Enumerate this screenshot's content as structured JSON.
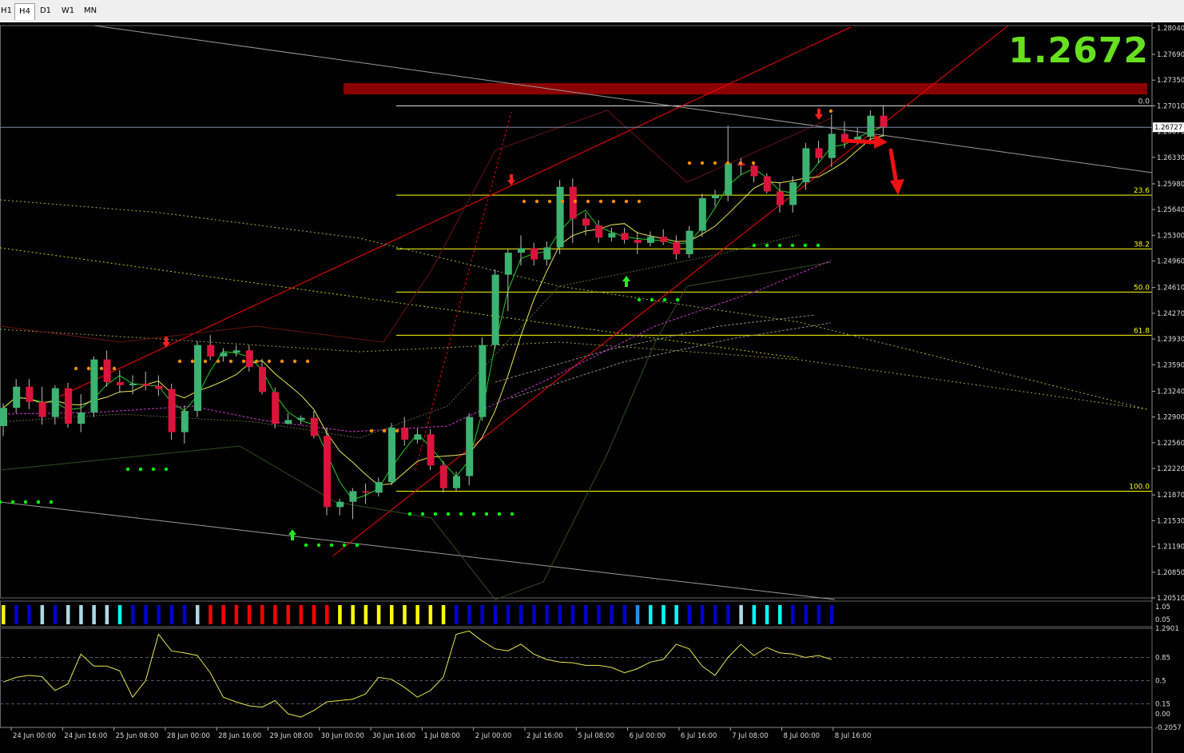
{
  "tabs": [
    {
      "label": "H1",
      "active": false
    },
    {
      "label": "H4",
      "active": true
    },
    {
      "label": "D1",
      "active": false
    },
    {
      "label": "W1",
      "active": false
    },
    {
      "label": "MN",
      "active": false
    }
  ],
  "current_price_big": "1.2672",
  "current_price_tag": "1.26727",
  "colors": {
    "bull": "#3cb371",
    "bear": "#dc143c",
    "fib": "#ffff00",
    "resistance": "#8b0000",
    "channel": "#ff0000",
    "buy_dot": "#00ff00",
    "sell_dot": "#ff8c00",
    "price_big": "#66e01f"
  },
  "chart_data": {
    "type": "candlestick",
    "symbol_timeframe": "H4",
    "price_axis_ticks": [
      "1.28040",
      "1.27690",
      "1.27350",
      "1.27010",
      "1.26670",
      "1.26330",
      "1.25980",
      "1.25640",
      "1.25300",
      "1.24960",
      "1.24610",
      "1.24270",
      "1.23930",
      "1.23590",
      "1.23240",
      "1.22900",
      "1.22560",
      "1.22220",
      "1.21870",
      "1.21530",
      "1.21190",
      "1.20850",
      "1.20510"
    ],
    "ylim": [
      1.2051,
      1.2807
    ],
    "time_axis_ticks": [
      "24 Jun 00:00",
      "24 Jun 16:00",
      "25 Jun 08:00",
      "28 Jun 00:00",
      "28 Jun 16:00",
      "29 Jun 08:00",
      "30 Jun 00:00",
      "30 Jun 16:00",
      "1 Jul 08:00",
      "2 Jul 00:00",
      "2 Jul 16:00",
      "5 Jul 08:00",
      "6 Jul 00:00",
      "6 Jul 16:00",
      "7 Jul 08:00",
      "8 Jul 00:00",
      "8 Jul 16:00"
    ],
    "fib_levels": [
      {
        "label": "0.0",
        "price": 1.2701
      },
      {
        "label": "23.6",
        "price": 1.2583
      },
      {
        "label": "38.2",
        "price": 1.2512
      },
      {
        "label": "50.0",
        "price": 1.2455
      },
      {
        "label": "61.8",
        "price": 1.2398
      },
      {
        "label": "100.0",
        "price": 1.2192
      }
    ],
    "resistance_zone": [
      1.2716,
      1.2731
    ],
    "candles": [
      [
        1.2278,
        1.2308,
        1.2265,
        1.2302
      ],
      [
        1.2302,
        1.234,
        1.2295,
        1.233
      ],
      [
        1.233,
        1.234,
        1.23,
        1.231
      ],
      [
        1.231,
        1.233,
        1.228,
        1.229
      ],
      [
        1.229,
        1.2332,
        1.228,
        1.2328
      ],
      [
        1.2328,
        1.2335,
        1.2276,
        1.2281
      ],
      [
        1.2281,
        1.232,
        1.227,
        1.2296
      ],
      [
        1.2296,
        1.237,
        1.229,
        1.2366
      ],
      [
        1.2366,
        1.2378,
        1.233,
        1.2336
      ],
      [
        1.2336,
        1.2352,
        1.2322,
        1.2332
      ],
      [
        1.2332,
        1.2345,
        1.232,
        1.2334
      ],
      [
        1.2334,
        1.235,
        1.2325,
        1.2331
      ],
      [
        1.2331,
        1.2345,
        1.2318,
        1.2327
      ],
      [
        1.2327,
        1.2334,
        1.226,
        1.227
      ],
      [
        1.227,
        1.2305,
        1.2255,
        1.2298
      ],
      [
        1.2298,
        1.239,
        1.229,
        1.2385
      ],
      [
        1.2385,
        1.2398,
        1.2365,
        1.237
      ],
      [
        1.237,
        1.2381,
        1.2363,
        1.2375
      ],
      [
        1.2375,
        1.2385,
        1.237,
        1.2378
      ],
      [
        1.2378,
        1.2385,
        1.235,
        1.2356
      ],
      [
        1.2356,
        1.2367,
        1.232,
        1.2323
      ],
      [
        1.2323,
        1.2329,
        1.2275,
        1.2281
      ],
      [
        1.2281,
        1.2295,
        1.228,
        1.2286
      ],
      [
        1.2286,
        1.2292,
        1.228,
        1.2289
      ],
      [
        1.2289,
        1.2298,
        1.2262,
        1.2265
      ],
      [
        1.2265,
        1.2276,
        1.216,
        1.2171
      ],
      [
        1.2171,
        1.2182,
        1.216,
        1.2178
      ],
      [
        1.2178,
        1.2196,
        1.2155,
        1.2192
      ],
      [
        1.2192,
        1.2202,
        1.2175,
        1.219
      ],
      [
        1.219,
        1.221,
        1.2185,
        1.2204
      ],
      [
        1.2204,
        1.2282,
        1.22,
        1.2276
      ],
      [
        1.2276,
        1.229,
        1.2252,
        1.226
      ],
      [
        1.226,
        1.2275,
        1.2255,
        1.2267
      ],
      [
        1.2267,
        1.2274,
        1.222,
        1.2226
      ],
      [
        1.2226,
        1.2232,
        1.219,
        1.2196
      ],
      [
        1.2196,
        1.2218,
        1.2192,
        1.2212
      ],
      [
        1.2212,
        1.2295,
        1.22,
        1.229
      ],
      [
        1.229,
        1.2395,
        1.2285,
        1.2385
      ],
      [
        1.2385,
        1.2485,
        1.238,
        1.2478
      ],
      [
        1.2478,
        1.2512,
        1.243,
        1.2507
      ],
      [
        1.2507,
        1.253,
        1.249,
        1.2513
      ],
      [
        1.2513,
        1.252,
        1.249,
        1.2498
      ],
      [
        1.2498,
        1.2522,
        1.249,
        1.2514
      ],
      [
        1.2514,
        1.2603,
        1.2505,
        1.2594
      ],
      [
        1.2594,
        1.2605,
        1.252,
        1.2552
      ],
      [
        1.2552,
        1.256,
        1.253,
        1.2543
      ],
      [
        1.2543,
        1.255,
        1.252,
        1.2527
      ],
      [
        1.2527,
        1.254,
        1.2522,
        1.2533
      ],
      [
        1.2533,
        1.254,
        1.2519,
        1.2524
      ],
      [
        1.2524,
        1.2535,
        1.2505,
        1.252
      ],
      [
        1.252,
        1.2535,
        1.2515,
        1.2528
      ],
      [
        1.2528,
        1.2538,
        1.2517,
        1.2521
      ],
      [
        1.2521,
        1.253,
        1.2498,
        1.2505
      ],
      [
        1.2505,
        1.2542,
        1.25,
        1.2536
      ],
      [
        1.2536,
        1.2585,
        1.2528,
        1.2579
      ],
      [
        1.2579,
        1.259,
        1.2568,
        1.2583
      ],
      [
        1.2583,
        1.2675,
        1.2575,
        1.2625
      ],
      [
        1.2625,
        1.2632,
        1.261,
        1.2622
      ],
      [
        1.2622,
        1.2625,
        1.26,
        1.2608
      ],
      [
        1.2608,
        1.2612,
        1.2585,
        1.2588
      ],
      [
        1.2588,
        1.26,
        1.256,
        1.257
      ],
      [
        1.257,
        1.2608,
        1.256,
        1.26
      ],
      [
        1.26,
        1.2652,
        1.259,
        1.2645
      ],
      [
        1.2645,
        1.2655,
        1.2625,
        1.2632
      ],
      [
        1.2632,
        1.269,
        1.262,
        1.2664
      ],
      [
        1.2664,
        1.268,
        1.2645,
        1.2653
      ],
      [
        1.2653,
        1.2672,
        1.265,
        1.266
      ],
      [
        1.266,
        1.2695,
        1.265,
        1.2688
      ],
      [
        1.2688,
        1.2702,
        1.266,
        1.2673
      ]
    ],
    "arrow_annotations": [
      {
        "type": "right",
        "from_price": 1.2663,
        "to_price": 1.2658
      },
      {
        "type": "down",
        "from_price": 1.2638,
        "to_price": 1.2575
      }
    ],
    "histogram_axis_ticks": [
      "1.05",
      "0.05"
    ],
    "histogram_colors": [
      "#ffff00",
      "#0000cd",
      "#0000cd",
      "#add8e6",
      "#0000cd",
      "#add8e6",
      "#add8e6",
      "#add8e6",
      "#add8e6",
      "#00ffff",
      "#0000cd",
      "#0000cd",
      "#0000cd",
      "#0000cd",
      "#0000cd",
      "#add8e6",
      "#ff0000",
      "#ff0000",
      "#ff0000",
      "#ff0000",
      "#ff0000",
      "#ff0000",
      "#ff0000",
      "#ff0000",
      "#ff0000",
      "#ff0000",
      "#ffff00",
      "#ffff00",
      "#ffff00",
      "#ffff00",
      "#ffff00",
      "#ffff00",
      "#ffff00",
      "#ffff00",
      "#ffff00",
      "#0000cd",
      "#0000cd",
      "#0000cd",
      "#0000cd",
      "#0000cd",
      "#0000cd",
      "#0000cd",
      "#0000cd",
      "#0000cd",
      "#0000cd",
      "#0000cd",
      "#0000cd",
      "#0000cd",
      "#0000cd",
      "#1e90ff",
      "#00ffff",
      "#00ffff",
      "#00ffff",
      "#0000cd",
      "#0000cd",
      "#0000cd",
      "#0000cd",
      "#add8e6",
      "#00ffff",
      "#00ffff",
      "#00ffff",
      "#0000cd",
      "#0000cd",
      "#0000cd",
      "#0000cd"
    ],
    "oscillator_axis_ticks": [
      "1.2901",
      "0.85",
      "0.5",
      "0.15",
      "0.00",
      "-0.2057"
    ],
    "oscillator_ylim": [
      -0.2057,
      1.2901
    ],
    "oscillator_values": [
      0.48,
      0.55,
      0.58,
      0.56,
      0.35,
      0.45,
      0.9,
      0.72,
      0.72,
      0.65,
      0.25,
      0.5,
      1.2,
      0.95,
      0.92,
      0.88,
      0.62,
      0.25,
      0.18,
      0.12,
      0.1,
      0.2,
      0.0,
      -0.05,
      0.05,
      0.18,
      0.2,
      0.22,
      0.3,
      0.55,
      0.52,
      0.4,
      0.25,
      0.35,
      0.55,
      1.2,
      1.25,
      1.1,
      0.98,
      0.95,
      1.05,
      0.9,
      0.82,
      0.78,
      0.77,
      0.73,
      0.73,
      0.7,
      0.62,
      0.68,
      0.78,
      0.82,
      1.05,
      0.98,
      0.72,
      0.58,
      0.85,
      1.05,
      0.88,
      1.0,
      0.92,
      0.9,
      0.85,
      0.88,
      0.82
    ]
  }
}
